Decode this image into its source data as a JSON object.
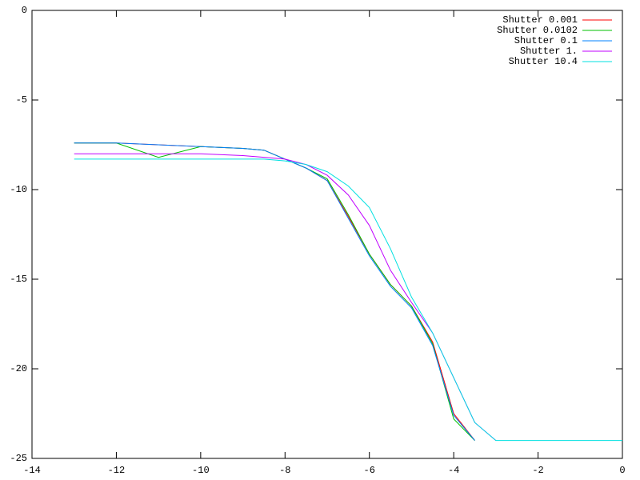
{
  "chart_data": {
    "type": "line",
    "x": [
      -13,
      -12,
      -11,
      -10,
      -9,
      -8.5,
      -8,
      -7.5,
      -7,
      -6.5,
      -6,
      -5.5,
      -5,
      -4.5,
      -4,
      -3.5,
      -3,
      -2.8,
      -2,
      -1,
      0
    ],
    "series": [
      {
        "name": "Shutter 0.001",
        "color": "#ff0000",
        "values": [
          -7.4,
          -7.4,
          -7.5,
          -7.6,
          -7.7,
          -7.8,
          -8.3,
          -8.8,
          -9.5,
          -11.5,
          -13.6,
          -15.3,
          -16.5,
          -18.5,
          -22.5,
          -24,
          null,
          null,
          null,
          null,
          null
        ]
      },
      {
        "name": "Shutter 0.0102",
        "color": "#00c000",
        "values": [
          -7.4,
          -7.4,
          -8.2,
          -7.6,
          -7.7,
          -7.8,
          -8.3,
          -8.8,
          -9.4,
          -11.4,
          -13.6,
          -15.3,
          -16.5,
          -18.6,
          -22.8,
          -24,
          null,
          null,
          null,
          null,
          null
        ]
      },
      {
        "name": "Shutter 0.1",
        "color": "#0080ff",
        "values": [
          -7.4,
          -7.4,
          -7.5,
          -7.6,
          -7.7,
          -7.8,
          -8.3,
          -8.8,
          -9.5,
          -11.6,
          -13.7,
          -15.4,
          -16.6,
          -18.7,
          -22.6,
          -24,
          null,
          null,
          null,
          null,
          null
        ]
      },
      {
        "name": "Shutter 1.",
        "color": "#c000ff",
        "values": [
          -8,
          -8,
          -8,
          -8,
          -8.1,
          -8.2,
          -8.3,
          -8.6,
          -9.2,
          -10.3,
          -12,
          -14.5,
          -16.3,
          -18,
          -20.5,
          -23,
          -24,
          null,
          null,
          null,
          null
        ]
      },
      {
        "name": "Shutter 10.4",
        "color": "#00e0e0",
        "values": [
          -8.3,
          -8.3,
          -8.3,
          -8.3,
          -8.3,
          -8.3,
          -8.4,
          -8.6,
          -9,
          -9.8,
          -11,
          -13.3,
          -16,
          -18,
          -20.5,
          -23,
          -24,
          -24,
          -24,
          -24,
          -24
        ]
      }
    ],
    "xlim": [
      -14,
      0
    ],
    "xticks": [
      -14,
      -12,
      -10,
      -8,
      -6,
      -4,
      -2,
      0
    ],
    "ylim": [
      -25,
      0
    ],
    "yticks": [
      0,
      -5,
      -10,
      -15,
      -20,
      -25
    ],
    "legend": "top right"
  }
}
